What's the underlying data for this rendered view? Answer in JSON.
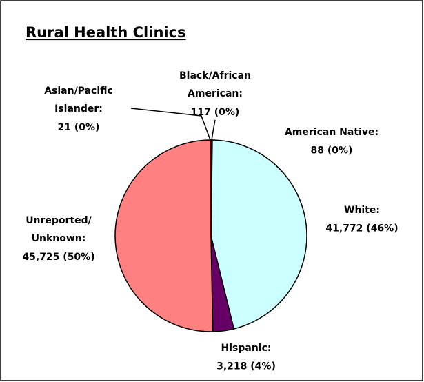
{
  "chart_data": {
    "type": "pie",
    "title": "Rural Health Clinics",
    "categories": [
      [
        "Black/African",
        "American:"
      ],
      [
        "American Native:"
      ],
      [
        "White:"
      ],
      [
        "Hispanic:"
      ],
      [
        "Unreported/",
        "Unknown:"
      ],
      [
        "Asian/Pacific",
        "Islander:"
      ]
    ],
    "values": [
      117,
      88,
      41772,
      3218,
      45725,
      21
    ],
    "value_labels": [
      "117 (0%)",
      "88 (0%)",
      "41,772 (46%)",
      "3,218 (4%)",
      "45,725 (50%)",
      "21 (0%)"
    ],
    "colors": [
      "#000080",
      "#ffffcc",
      "#ccffff",
      "#660066",
      "#ff8080",
      "#9999ff"
    ]
  }
}
